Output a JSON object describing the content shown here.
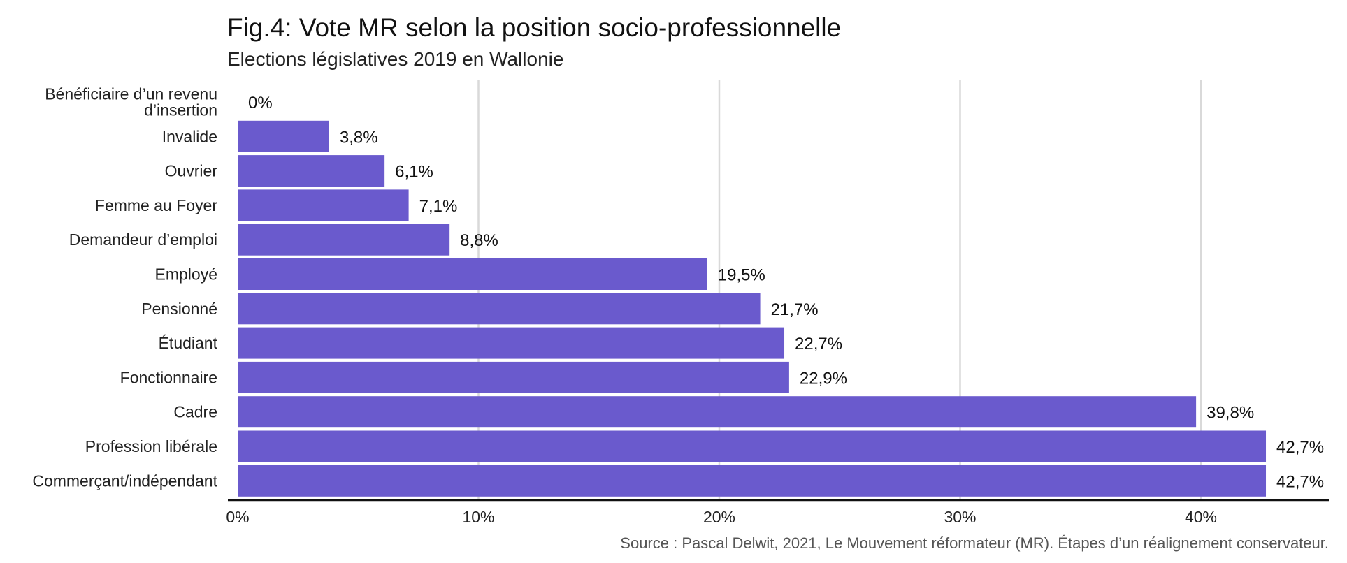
{
  "chart_data": {
    "type": "bar",
    "orientation": "horizontal",
    "title": "Fig.4: Vote MR selon la position socio-professionnelle",
    "subtitle": "Elections législatives 2019 en Wallonie",
    "categories": [
      "Bénéficiaire d’un revenu d’insertion",
      "Invalide",
      "Ouvrier",
      "Femme au Foyer",
      "Demandeur d’emploi",
      "Employé",
      "Pensionné",
      "Étudiant",
      "Fonctionnaire",
      "Cadre",
      "Profession libérale",
      "Commerçant/indépendant"
    ],
    "category_label_lines": [
      [
        "Bénéficiaire d’un revenu",
        "d’insertion"
      ],
      [
        "Invalide"
      ],
      [
        "Ouvrier"
      ],
      [
        "Femme au Foyer"
      ],
      [
        "Demandeur d’emploi"
      ],
      [
        "Employé"
      ],
      [
        "Pensionné"
      ],
      [
        "Étudiant"
      ],
      [
        "Fonctionnaire"
      ],
      [
        "Cadre"
      ],
      [
        "Profession libérale"
      ],
      [
        "Commerçant/indépendant"
      ]
    ],
    "values": [
      0,
      3.8,
      6.1,
      7.1,
      8.8,
      19.5,
      21.7,
      22.7,
      22.9,
      39.8,
      42.7,
      42.7
    ],
    "value_labels": [
      "0%",
      "3,8%",
      "6,1%",
      "7,1%",
      "8,8%",
      "19,5%",
      "21,7%",
      "22,7%",
      "22,9%",
      "39,8%",
      "42,7%",
      "42,7%"
    ],
    "xlim": [
      0,
      45
    ],
    "x_ticks": [
      0,
      10,
      20,
      30,
      40
    ],
    "x_tick_labels": [
      "0%",
      "10%",
      "20%",
      "30%",
      "40%"
    ],
    "xlabel": "",
    "ylabel": "",
    "grid": true,
    "legend": "none",
    "bar_color": "#6a5acd",
    "source": "Source : Pascal Delwit, 2021, Le Mouvement réformateur (MR). Étapes d’un réalignement conservateur."
  }
}
